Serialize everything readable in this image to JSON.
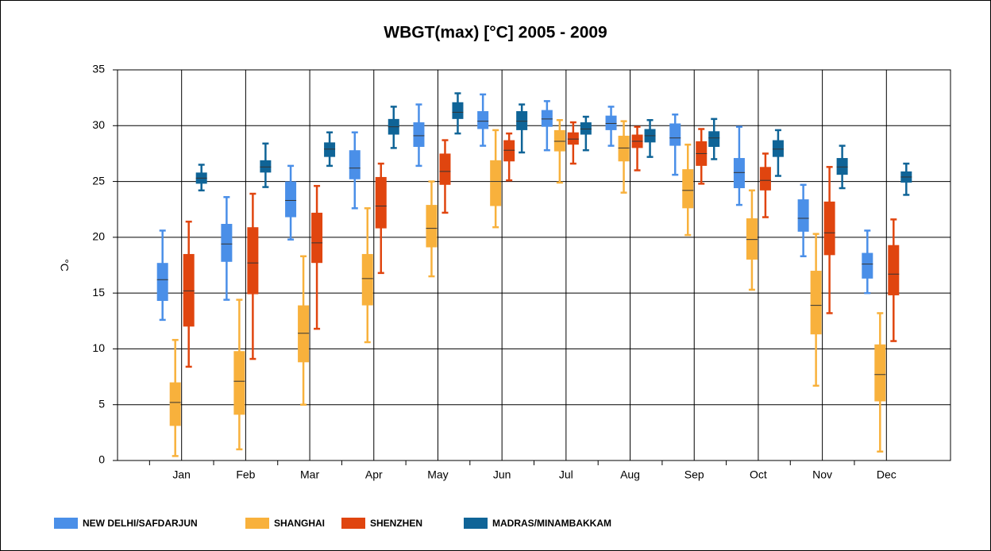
{
  "chart_data": {
    "type": "box",
    "title": "WBGT(max) [°C] 2005 - 2009",
    "y_label": "°C",
    "categories": [
      "Jan",
      "Feb",
      "Mar",
      "Apr",
      "May",
      "Jun",
      "Jul",
      "Aug",
      "Sep",
      "Oct",
      "Nov",
      "Dec"
    ],
    "ylim": [
      0,
      35
    ],
    "yticks": [
      0,
      5,
      10,
      15,
      20,
      25,
      30,
      35
    ],
    "grid": true,
    "legend": "bottom",
    "series": [
      {
        "name": "NEW DELHI/SAFDARJUN",
        "color": "#4a8fe8",
        "values": [
          [
            12.6,
            14.3,
            16.2,
            17.7,
            20.6
          ],
          [
            14.4,
            17.8,
            19.4,
            21.2,
            23.6
          ],
          [
            19.8,
            21.8,
            23.3,
            25.0,
            26.4
          ],
          [
            22.6,
            25.2,
            26.2,
            27.8,
            29.4
          ],
          [
            26.4,
            28.1,
            29.1,
            30.3,
            31.9
          ],
          [
            28.2,
            29.7,
            30.4,
            31.3,
            32.8
          ],
          [
            27.8,
            29.9,
            30.6,
            31.4,
            32.2
          ],
          [
            28.2,
            29.6,
            30.2,
            30.9,
            31.7
          ],
          [
            25.6,
            28.2,
            28.9,
            30.2,
            31.0
          ],
          [
            22.9,
            24.4,
            25.8,
            27.1,
            29.9
          ],
          [
            18.3,
            20.5,
            21.7,
            23.4,
            24.7
          ],
          [
            15.0,
            16.3,
            17.6,
            18.6,
            20.6
          ]
        ]
      },
      {
        "name": "SHANGHAI",
        "color": "#f8b13c",
        "values": [
          [
            0.4,
            3.1,
            5.2,
            7.0,
            10.8
          ],
          [
            1.0,
            4.1,
            7.1,
            9.8,
            14.4
          ],
          [
            5.0,
            8.8,
            11.4,
            13.9,
            18.3
          ],
          [
            10.6,
            13.9,
            16.3,
            18.5,
            22.6
          ],
          [
            16.5,
            19.1,
            20.8,
            22.9,
            25.0
          ],
          [
            20.9,
            22.8,
            25.0,
            26.9,
            29.6
          ],
          [
            24.9,
            27.7,
            28.6,
            29.6,
            30.5
          ],
          [
            24.0,
            26.8,
            28.0,
            29.1,
            30.4
          ],
          [
            20.2,
            22.6,
            24.2,
            26.1,
            28.3
          ],
          [
            15.3,
            18.0,
            19.8,
            21.7,
            24.2
          ],
          [
            6.7,
            11.3,
            13.9,
            17.0,
            20.3
          ],
          [
            0.8,
            5.3,
            7.7,
            10.4,
            13.2
          ]
        ]
      },
      {
        "name": "SHENZHEN",
        "color": "#e0450f",
        "values": [
          [
            8.4,
            12.0,
            15.2,
            18.5,
            21.4
          ],
          [
            9.1,
            14.9,
            17.7,
            20.9,
            23.9
          ],
          [
            11.8,
            17.7,
            19.5,
            22.2,
            24.6
          ],
          [
            16.8,
            20.8,
            22.8,
            25.4,
            26.6
          ],
          [
            22.2,
            24.7,
            25.9,
            27.5,
            28.7
          ],
          [
            25.1,
            26.8,
            27.8,
            28.7,
            29.3
          ],
          [
            26.6,
            28.3,
            28.8,
            29.4,
            30.3
          ],
          [
            26.0,
            28.0,
            28.6,
            29.2,
            29.9
          ],
          [
            24.8,
            26.4,
            27.5,
            28.6,
            29.7
          ],
          [
            21.8,
            24.2,
            25.1,
            26.3,
            27.5
          ],
          [
            13.2,
            18.4,
            20.4,
            23.2,
            26.3
          ],
          [
            10.7,
            14.8,
            16.7,
            19.3,
            21.6
          ]
        ]
      },
      {
        "name": "MADRAS/MINAMBAKKAM",
        "color": "#0f6497",
        "values": [
          [
            24.2,
            24.8,
            25.3,
            25.8,
            26.5
          ],
          [
            24.5,
            25.8,
            26.3,
            26.9,
            28.4
          ],
          [
            26.4,
            27.2,
            27.9,
            28.5,
            29.4
          ],
          [
            28.0,
            29.2,
            29.9,
            30.6,
            31.7
          ],
          [
            29.3,
            30.6,
            31.2,
            32.1,
            32.9
          ],
          [
            27.6,
            29.6,
            30.4,
            31.3,
            31.9
          ],
          [
            27.8,
            29.2,
            29.7,
            30.3,
            30.8
          ],
          [
            27.2,
            28.5,
            29.1,
            29.7,
            30.5
          ],
          [
            27.0,
            28.1,
            28.9,
            29.5,
            30.6
          ],
          [
            25.5,
            27.2,
            27.9,
            28.7,
            29.6
          ],
          [
            24.4,
            25.6,
            26.3,
            27.1,
            28.2
          ],
          [
            23.8,
            24.9,
            25.4,
            25.9,
            26.6
          ]
        ]
      }
    ]
  }
}
